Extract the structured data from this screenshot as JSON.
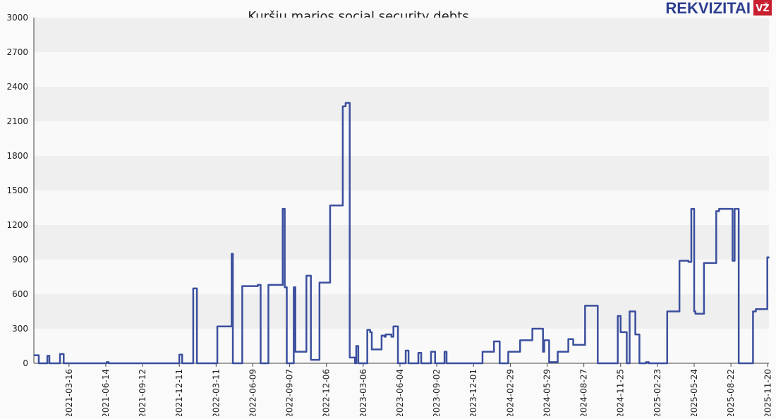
{
  "chart_data": {
    "type": "line",
    "title": "Kuršių marios social security debts",
    "brand": {
      "name": "REKVIZITAI",
      "badge": "VŽ"
    },
    "xlim": [
      "2020-12-20",
      "2025-11-23"
    ],
    "xticks": [
      "2021-03-16",
      "2021-06-14",
      "2021-09-12",
      "2021-12-11",
      "2022-03-11",
      "2022-06-09",
      "2022-09-07",
      "2022-12-06",
      "2023-03-06",
      "2023-06-04",
      "2023-09-02",
      "2023-12-01",
      "2024-02-29",
      "2024-05-29",
      "2024-08-27",
      "2024-11-25",
      "2025-02-23",
      "2025-05-24",
      "2025-08-22",
      "2025-11-20"
    ],
    "ylim": [
      0,
      3000
    ],
    "yticks": [
      0,
      300,
      600,
      900,
      1200,
      1500,
      1800,
      2100,
      2400,
      2700,
      3000
    ],
    "grid": "bands",
    "step": "post",
    "series": [
      {
        "color": "#3b4f9e",
        "x": [
          "2020-12-20",
          "2021-01-01",
          "2021-01-22",
          "2021-01-27",
          "2021-02-22",
          "2021-03-03",
          "2021-06-16",
          "2021-06-21",
          "2021-12-11",
          "2021-12-18",
          "2022-01-14",
          "2022-01-23",
          "2022-03-14",
          "2022-04-18",
          "2022-04-21",
          "2022-05-14",
          "2022-06-21",
          "2022-06-28",
          "2022-07-17",
          "2022-08-21",
          "2022-08-26",
          "2022-08-31",
          "2022-09-17",
          "2022-09-21",
          "2022-10-18",
          "2022-10-29",
          "2022-11-19",
          "2022-12-15",
          "2023-01-15",
          "2023-01-22",
          "2023-02-01",
          "2023-02-14",
          "2023-02-17",
          "2023-02-22",
          "2023-03-16",
          "2023-03-23",
          "2023-03-27",
          "2023-04-20",
          "2023-04-27",
          "2023-04-30",
          "2023-05-14",
          "2023-05-19",
          "2023-05-30",
          "2023-06-18",
          "2023-06-25",
          "2023-07-19",
          "2023-07-26",
          "2023-08-19",
          "2023-08-29",
          "2023-09-21",
          "2023-09-26",
          "2023-12-23",
          "2024-01-20",
          "2024-02-03",
          "2024-02-24",
          "2024-03-24",
          "2024-04-23",
          "2024-05-19",
          "2024-05-22",
          "2024-06-03",
          "2024-06-24",
          "2024-07-20",
          "2024-08-01",
          "2024-08-30",
          "2024-09-30",
          "2024-11-18",
          "2024-11-25",
          "2024-12-10",
          "2024-12-17",
          "2024-12-31",
          "2025-01-10",
          "2025-01-26",
          "2025-02-02",
          "2025-03-19",
          "2025-04-18",
          "2025-05-10",
          "2025-05-17",
          "2025-05-24",
          "2025-05-27",
          "2025-06-17",
          "2025-07-17",
          "2025-07-24",
          "2025-08-26",
          "2025-08-31",
          "2025-09-10",
          "2025-10-15",
          "2025-10-22",
          "2025-11-19",
          "2025-11-22"
        ],
        "values": [
          70,
          0,
          65,
          0,
          80,
          0,
          10,
          0,
          75,
          0,
          650,
          0,
          320,
          950,
          0,
          670,
          680,
          0,
          680,
          1340,
          660,
          0,
          660,
          100,
          760,
          30,
          700,
          1370,
          2230,
          2260,
          50,
          0,
          150,
          0,
          290,
          270,
          120,
          240,
          230,
          250,
          230,
          320,
          0,
          110,
          0,
          90,
          0,
          100,
          0,
          100,
          0,
          100,
          190,
          0,
          100,
          200,
          300,
          100,
          200,
          10,
          100,
          210,
          160,
          500,
          0,
          410,
          270,
          0,
          450,
          250,
          0,
          10,
          0,
          450,
          890,
          880,
          1340,
          450,
          430,
          870,
          1320,
          1340,
          890,
          1340,
          0,
          450,
          470,
          920,
          910
        ]
      }
    ]
  }
}
